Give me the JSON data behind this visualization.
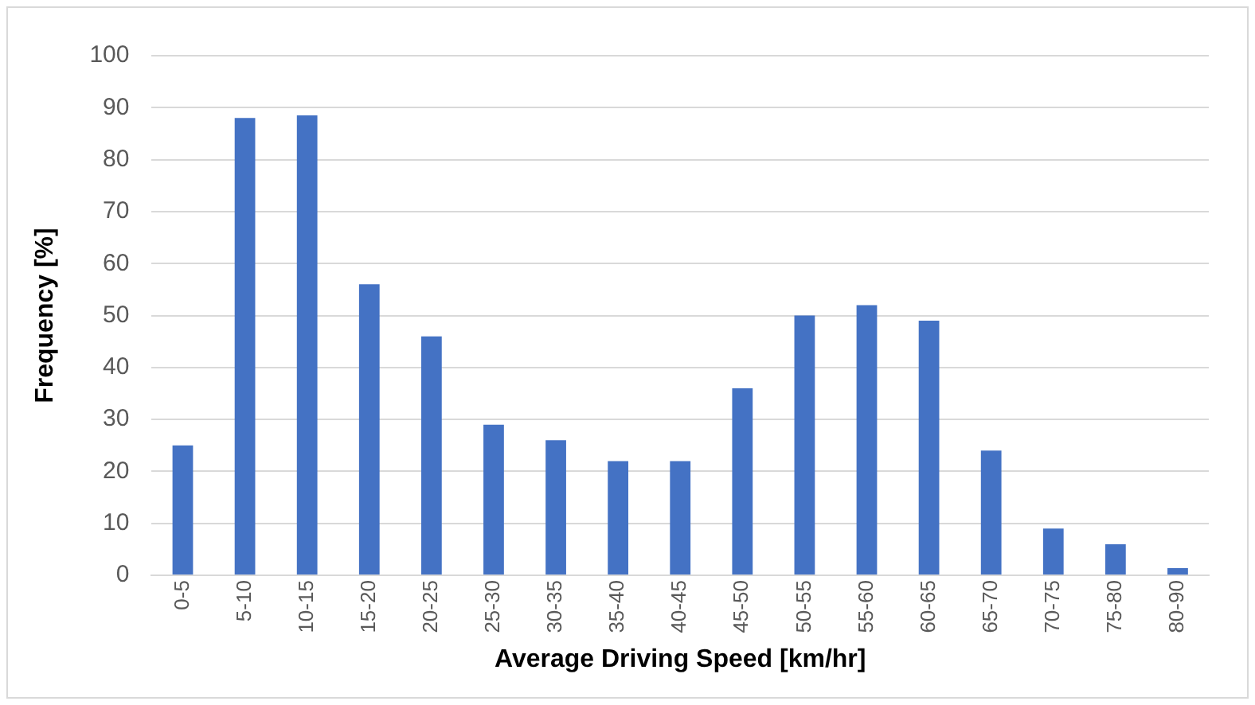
{
  "chart_data": {
    "type": "bar",
    "xlabel": "Average Driving Speed [km/hr]",
    "ylabel": "Frequency [%]",
    "categories": [
      "0-5",
      "5-10",
      "10-15",
      "15-20",
      "20-25",
      "25-30",
      "30-35",
      "35-40",
      "40-45",
      "45-50",
      "50-55",
      "55-60",
      "60-65",
      "65-70",
      "70-75",
      "75-80",
      "80-90"
    ],
    "values": [
      25,
      88,
      88.5,
      56,
      46,
      29,
      26,
      22,
      22,
      36,
      50,
      52,
      49,
      24,
      9,
      6,
      1.4
    ],
    "color": "#4472c4",
    "ylim": [
      0,
      100
    ],
    "yticks": [
      0,
      10,
      20,
      30,
      40,
      50,
      60,
      70,
      80,
      90,
      100
    ],
    "grid": "y",
    "legend": false
  }
}
